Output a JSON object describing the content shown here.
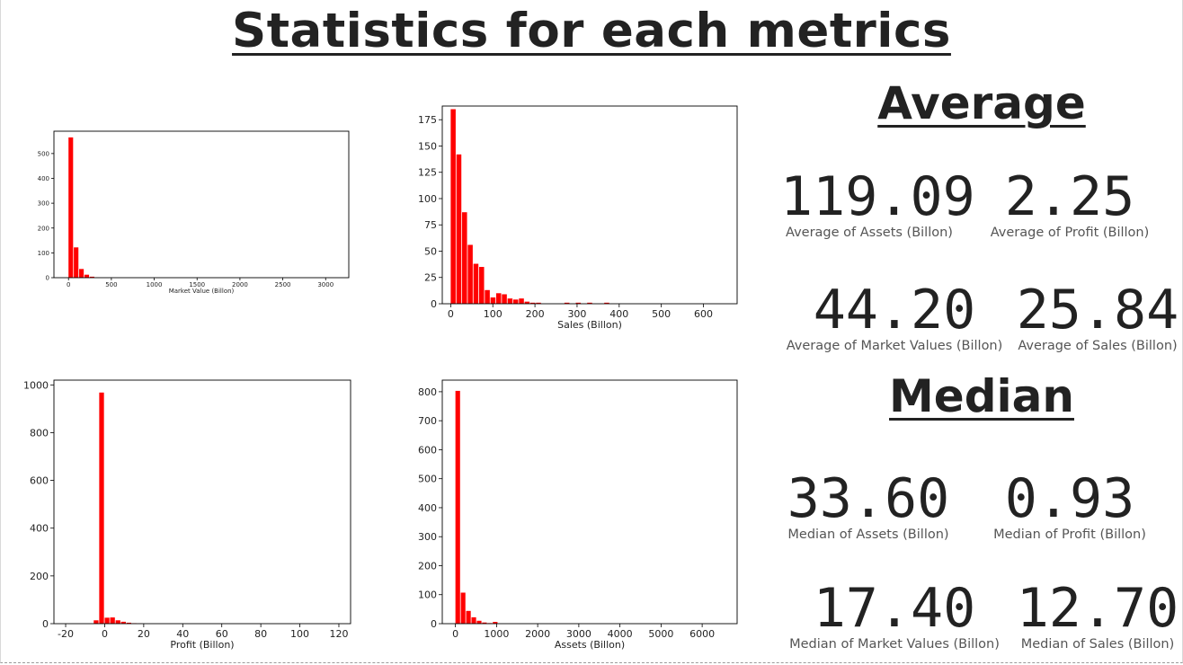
{
  "title": "Statistics for each metrics",
  "sections": {
    "average": {
      "heading": "Average",
      "stats": [
        {
          "value": "119.09",
          "label": "Average of Assets (Billon)"
        },
        {
          "value": "2.25",
          "label": "Average of Profit (Billon)"
        },
        {
          "value": "44.20",
          "label": "Average of Market Values (Billon)"
        },
        {
          "value": "25.84",
          "label": "Average of Sales (Billon)"
        }
      ]
    },
    "median": {
      "heading": "Median",
      "stats": [
        {
          "value": "33.60",
          "label": "Median of Assets (Billon)"
        },
        {
          "value": "0.93",
          "label": "Median of Profit (Billon)"
        },
        {
          "value": "17.40",
          "label": "Median of Market Values (Billon)"
        },
        {
          "value": "12.70",
          "label": "Median of Sales (Billon)"
        }
      ]
    }
  },
  "colors": {
    "bar": "#ff0000",
    "text": "#222222",
    "label": "#555555"
  },
  "chart_data": [
    {
      "type": "bar",
      "xlabel": "Market Value (Billon)",
      "xlim": [
        -170,
        3270
      ],
      "ylim": [
        0,
        590
      ],
      "xticks": [
        0,
        500,
        1000,
        1500,
        2000,
        2500,
        3000
      ],
      "yticks": [
        0,
        100,
        200,
        300,
        400,
        500
      ],
      "bin_width": 62,
      "bin_starts": [
        0,
        62,
        124,
        186,
        248,
        310
      ],
      "values": [
        565,
        122,
        35,
        12,
        4,
        1
      ]
    },
    {
      "type": "bar",
      "xlabel": "Sales (Billon)",
      "xlim": [
        -20,
        680
      ],
      "ylim": [
        0,
        188
      ],
      "xticks": [
        0,
        100,
        200,
        300,
        400,
        500,
        600
      ],
      "yticks": [
        0,
        25,
        50,
        75,
        100,
        125,
        150,
        175
      ],
      "bin_width": 13.5,
      "bin_starts": [
        0,
        13.5,
        27,
        40.5,
        54,
        67.5,
        81,
        94.5,
        108,
        121.5,
        135,
        148.5,
        162,
        175.5,
        189,
        202.5,
        216,
        229.5,
        243,
        256.5,
        270,
        283.5,
        297,
        310.5,
        324,
        337.5,
        351,
        364.5,
        378,
        391.5
      ],
      "values": [
        185,
        142,
        87,
        56,
        38,
        35,
        13,
        6,
        10,
        9,
        5,
        4,
        5,
        2,
        1,
        1,
        0,
        0,
        0,
        0,
        1,
        0,
        1,
        0,
        1,
        0,
        0,
        1,
        0,
        0
      ]
    },
    {
      "type": "bar",
      "xlabel": "Profit (Billon)",
      "xlim": [
        -26,
        126
      ],
      "ylim": [
        0,
        1020
      ],
      "xticks": [
        -20,
        0,
        20,
        40,
        60,
        80,
        100,
        120
      ],
      "yticks": [
        0,
        200,
        400,
        600,
        800,
        1000
      ],
      "bin_width": 2.8,
      "bin_starts": [
        -5.6,
        -2.8,
        0,
        2.8,
        5.6,
        8.4,
        11.2,
        14,
        16.8
      ],
      "values": [
        14,
        968,
        25,
        26,
        14,
        8,
        4,
        2,
        1
      ]
    },
    {
      "type": "bar",
      "xlabel": "Assets (Billon)",
      "xlim": [
        -320,
        6850
      ],
      "ylim": [
        0,
        840
      ],
      "xticks": [
        0,
        1000,
        2000,
        3000,
        4000,
        5000,
        6000
      ],
      "yticks": [
        0,
        100,
        200,
        300,
        400,
        500,
        600,
        700,
        800
      ],
      "bin_width": 130,
      "bin_starts": [
        0,
        130,
        260,
        390,
        520,
        650,
        780,
        910
      ],
      "values": [
        803,
        107,
        44,
        22,
        10,
        4,
        2,
        6
      ]
    }
  ]
}
